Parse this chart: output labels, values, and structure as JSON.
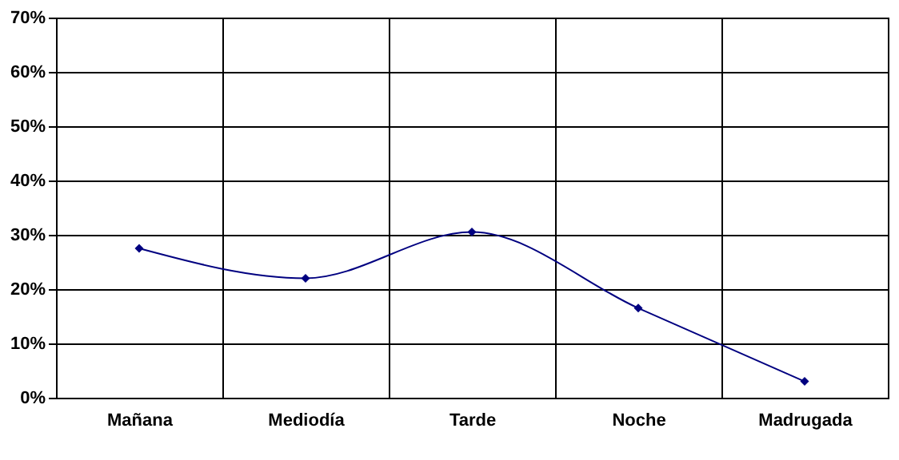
{
  "chart_data": {
    "type": "line",
    "categories": [
      "Mañana",
      "Mediodía",
      "Tarde",
      "Noche",
      "Madrugada"
    ],
    "series": [
      {
        "color": "#000080",
        "values": [
          27.5,
          22,
          30.5,
          16.5,
          3
        ]
      }
    ],
    "ylim": [
      0,
      70
    ],
    "yticks": [
      {
        "value": 0,
        "label": "0%"
      },
      {
        "value": 10,
        "label": "10%"
      },
      {
        "value": 20,
        "label": "20%"
      },
      {
        "value": 30,
        "label": "30%"
      },
      {
        "value": 40,
        "label": "40%"
      },
      {
        "value": 50,
        "label": "50%"
      },
      {
        "value": 60,
        "label": "60%"
      },
      {
        "value": 70,
        "label": "70%"
      }
    ],
    "grid": true,
    "marker": "diamond",
    "line_style": "solid",
    "legend": false
  }
}
